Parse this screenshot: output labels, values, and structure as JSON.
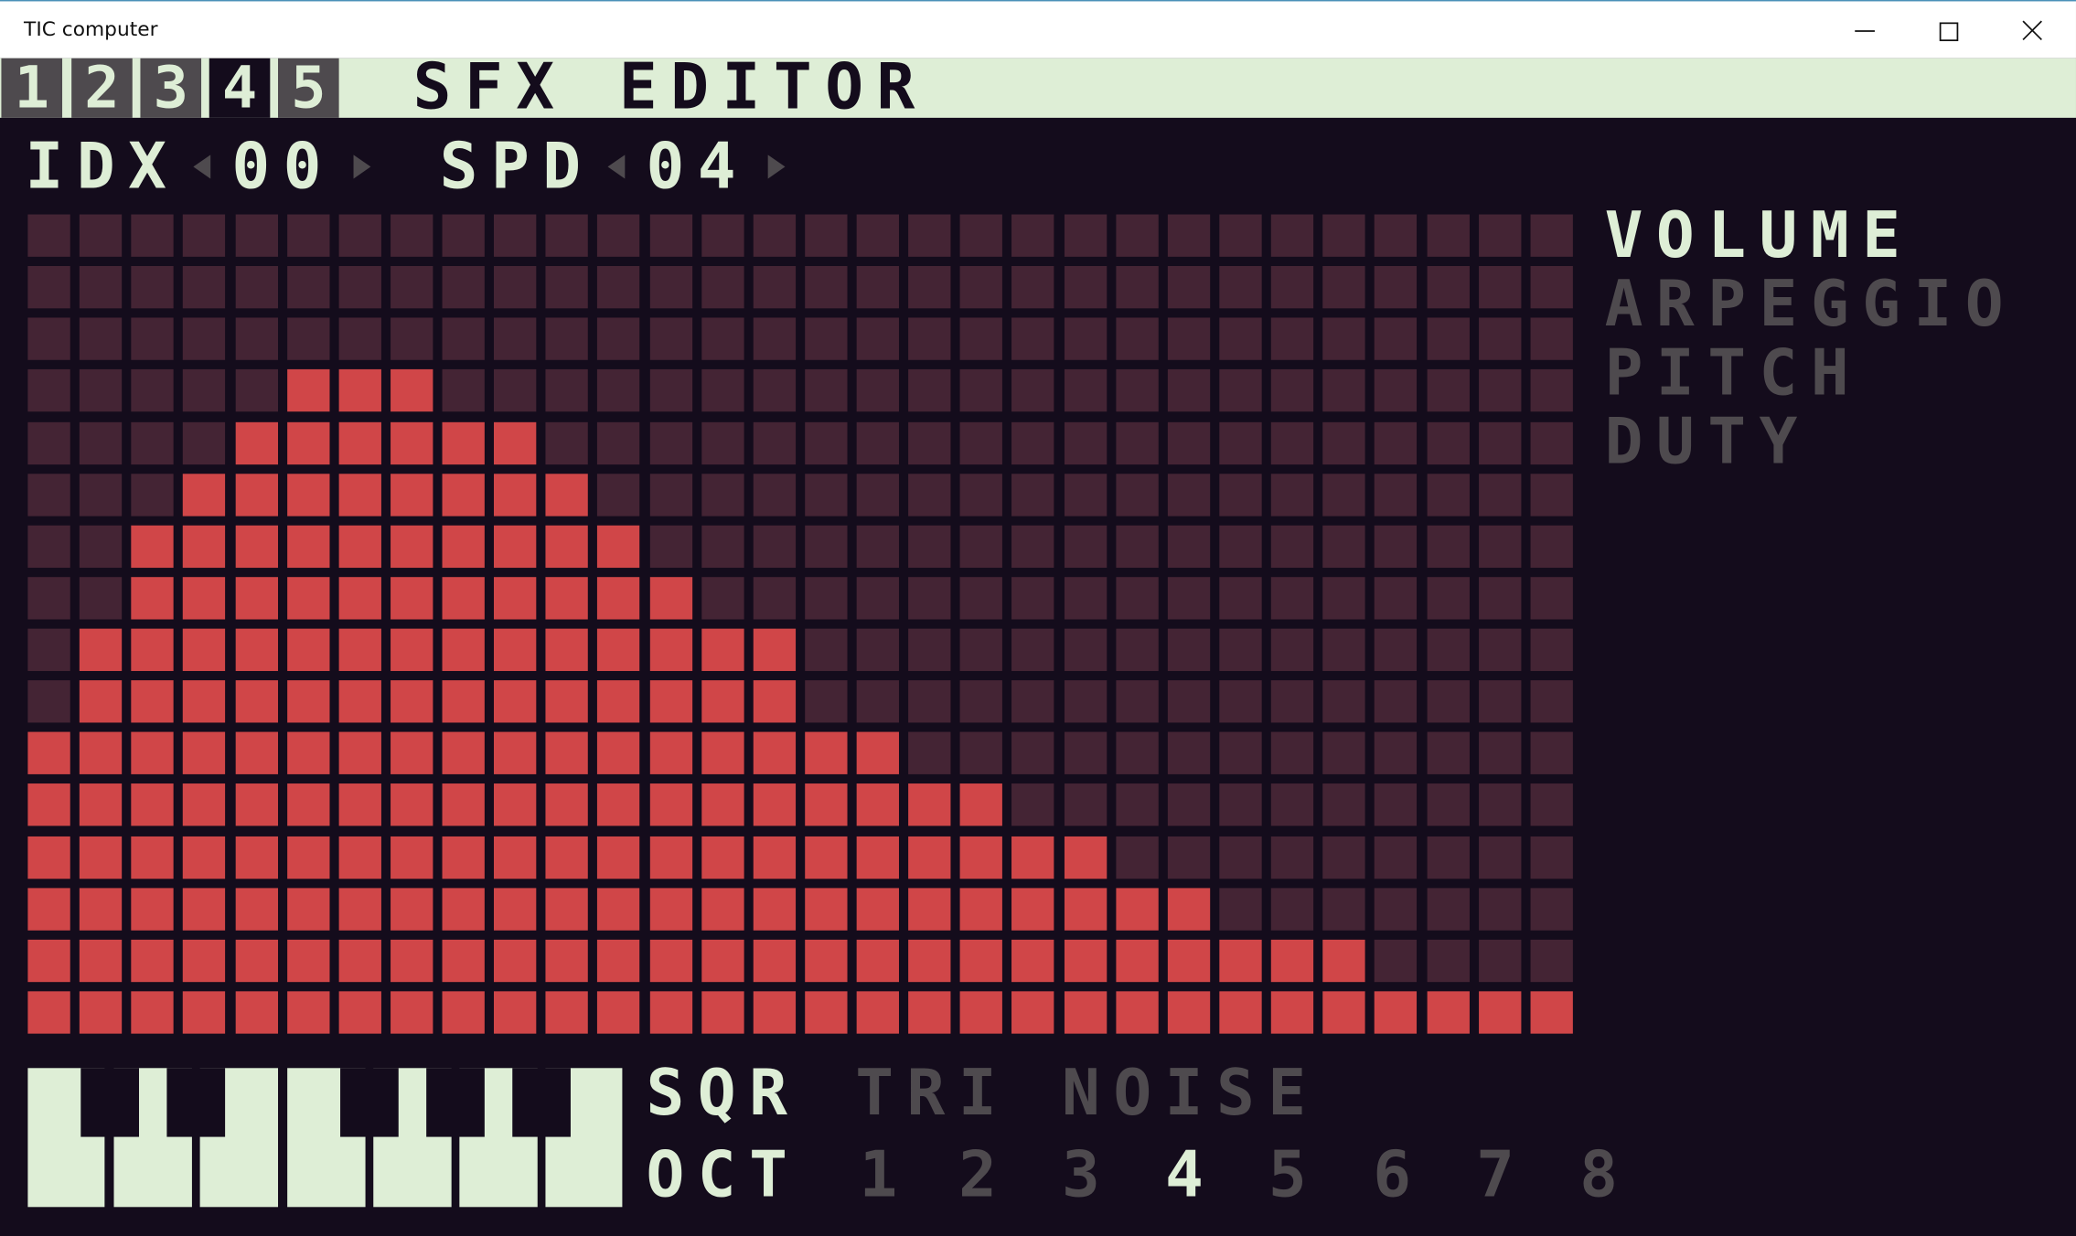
{
  "window": {
    "title": "TIC computer",
    "controls": [
      "minimize-icon",
      "maximize-icon",
      "close-icon"
    ]
  },
  "menu": {
    "tabs": [
      {
        "label": "1",
        "selected": false
      },
      {
        "label": "2",
        "selected": false
      },
      {
        "label": "3",
        "selected": false
      },
      {
        "label": "4",
        "selected": true
      },
      {
        "label": "5",
        "selected": false
      }
    ],
    "title": "SFX EDITOR"
  },
  "header": {
    "idx_label": "IDX",
    "idx_value": "00",
    "spd_label": "SPD",
    "spd_value": "04"
  },
  "envelopes": {
    "items": [
      {
        "label": "VOLUME",
        "selected": true
      },
      {
        "label": "ARPEGGIO",
        "selected": false
      },
      {
        "label": "PITCH",
        "selected": false
      },
      {
        "label": "DUTY",
        "selected": false
      }
    ]
  },
  "volume_grid": {
    "columns": 30,
    "levels": 16,
    "values": [
      5,
      7,
      9,
      10,
      11,
      12,
      12,
      12,
      11,
      11,
      10,
      9,
      8,
      7,
      7,
      5,
      5,
      4,
      4,
      3,
      3,
      2,
      2,
      1,
      1,
      1,
      0,
      0,
      0,
      0
    ]
  },
  "waveforms": {
    "items": [
      {
        "label": "SQR",
        "selected": true
      },
      {
        "label": "TRI",
        "selected": false
      },
      {
        "label": "NOISE",
        "selected": false
      }
    ]
  },
  "octave": {
    "label": "OCT",
    "options": [
      "1",
      "2",
      "3",
      "4",
      "5",
      "6",
      "7",
      "8"
    ],
    "selected": "4"
  },
  "colors": {
    "background": "#140c1c",
    "cell_empty": "#442434",
    "cell_filled": "#d04648",
    "text_light": "#deeed6",
    "text_dim": "#4e4a4e"
  }
}
